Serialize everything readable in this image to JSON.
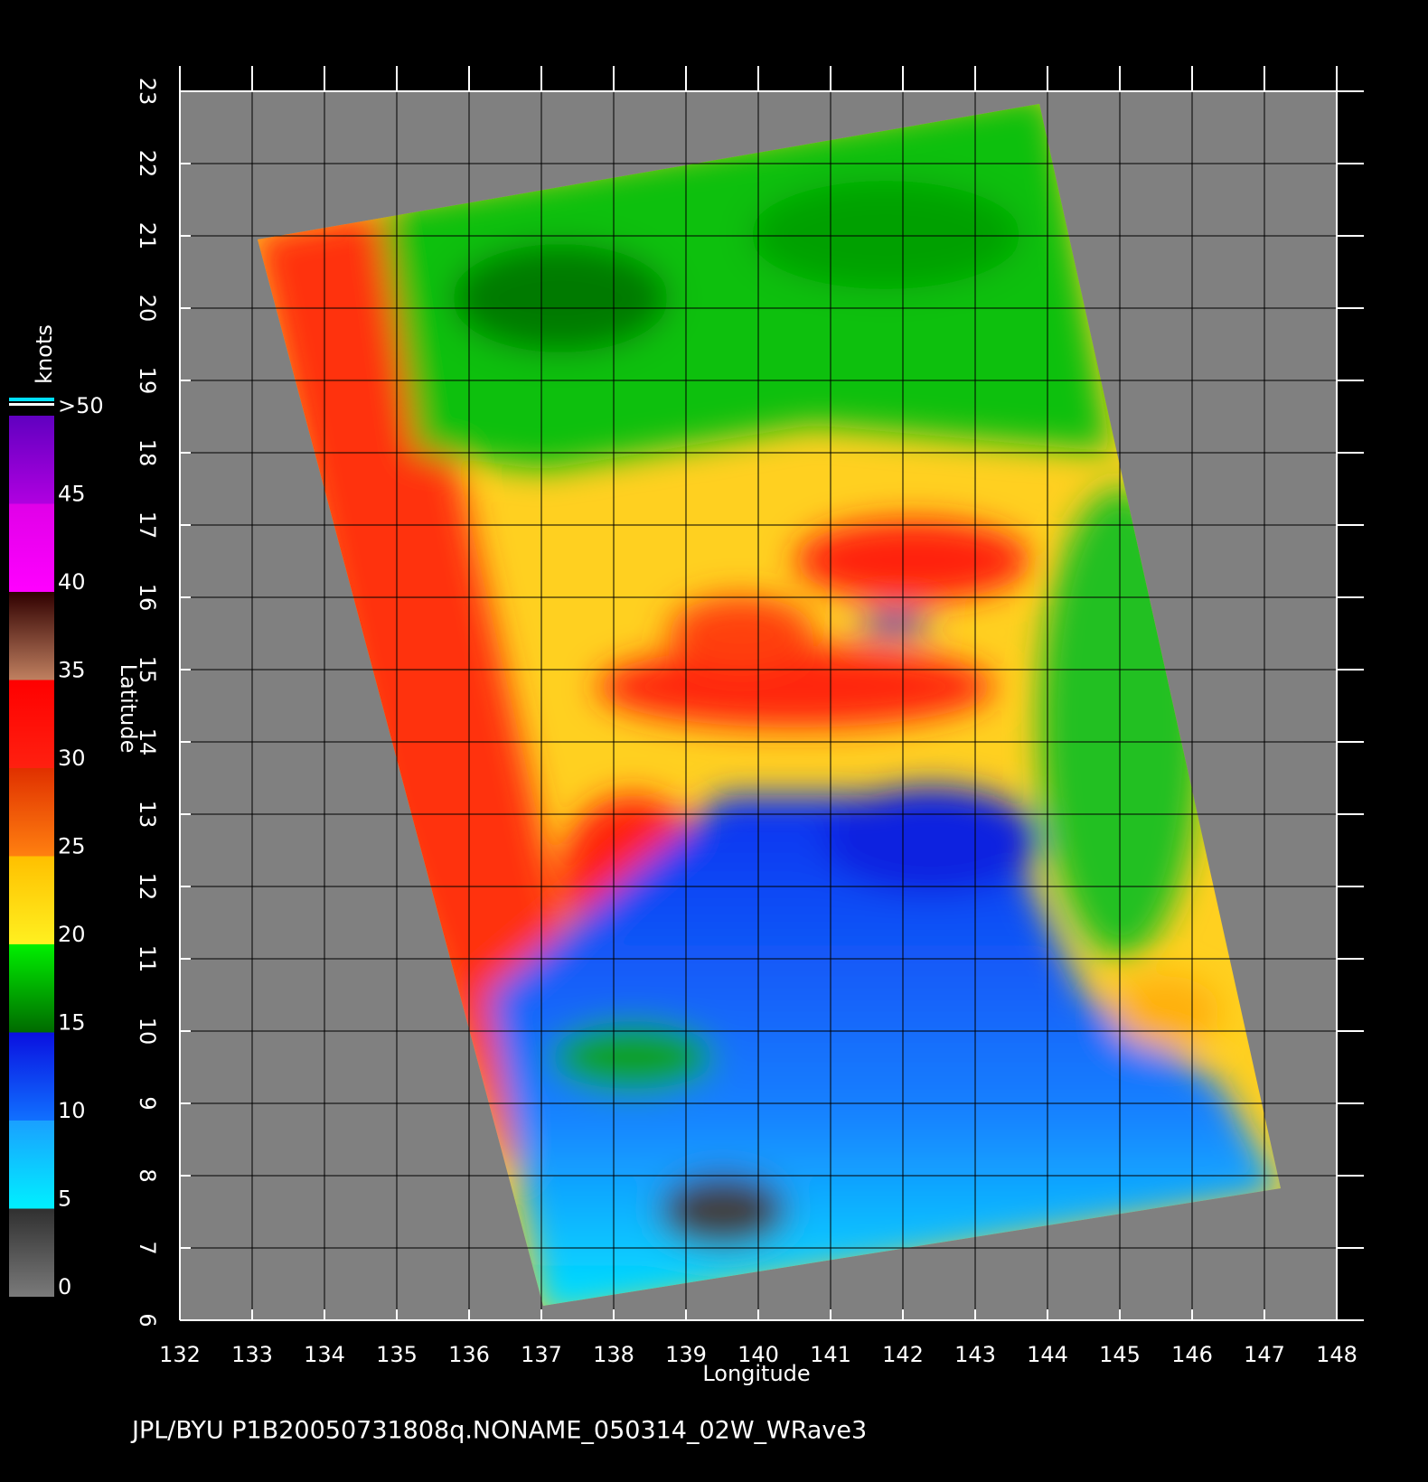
{
  "map": {
    "xlabel": "Longitude",
    "ylabel": "Latitude",
    "xlim": [
      132,
      148
    ],
    "ylim": [
      6,
      23
    ],
    "xticks": [
      132,
      133,
      134,
      135,
      136,
      137,
      138,
      139,
      140,
      141,
      142,
      143,
      144,
      145,
      146,
      147,
      148
    ],
    "yticks": [
      6,
      7,
      8,
      9,
      10,
      11,
      12,
      13,
      14,
      15,
      16,
      17,
      18,
      19,
      20,
      21,
      22,
      23
    ],
    "grid": true,
    "colorbar": {
      "label": "knots",
      "lim": [
        0,
        50
      ],
      "ticks": [
        0,
        5,
        10,
        15,
        20,
        25,
        30,
        35,
        40,
        45,
        {
          "value": 50,
          "label": ">50"
        }
      ],
      "colors": [
        [
          "#7a7a7a",
          "#303030"
        ],
        [
          "#00f0ff",
          "#1aa0ff"
        ],
        [
          "#1070ff",
          "#0a10e0"
        ],
        [
          "#006a00",
          "#00f000"
        ],
        [
          "#fff020",
          "#ffc000"
        ],
        [
          "#ff8010",
          "#e03000"
        ],
        [
          "#ff2010",
          "#ff0000"
        ],
        [
          "#c08060",
          "#300000"
        ],
        [
          "#ff00ff",
          "#e000e8"
        ],
        [
          "#b000e0",
          "#6000c0"
        ]
      ]
    },
    "footer": "JPL/BYU  P1B20050731808q.NONAME_050314_02W_WRave3"
  }
}
